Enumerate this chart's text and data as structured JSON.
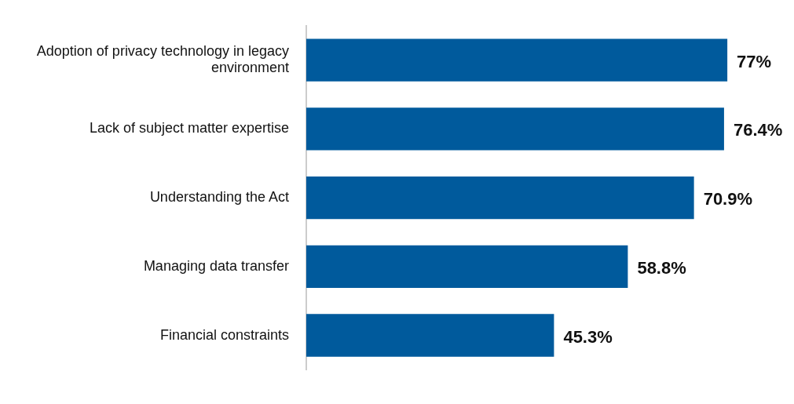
{
  "chart_data": {
    "type": "bar",
    "orientation": "horizontal",
    "categories": [
      "Adoption of privacy technology in legacy environment",
      "Lack of subject matter expertise",
      "Understanding the Act",
      "Managing data transfer",
      "Financial constraints"
    ],
    "values": [
      77,
      76.4,
      70.9,
      58.8,
      45.3
    ],
    "value_labels": [
      "77%",
      "76.4%",
      "70.9%",
      "58.8%",
      "45.3%"
    ],
    "color": "#005a9c",
    "tick_labels": "y"
  }
}
